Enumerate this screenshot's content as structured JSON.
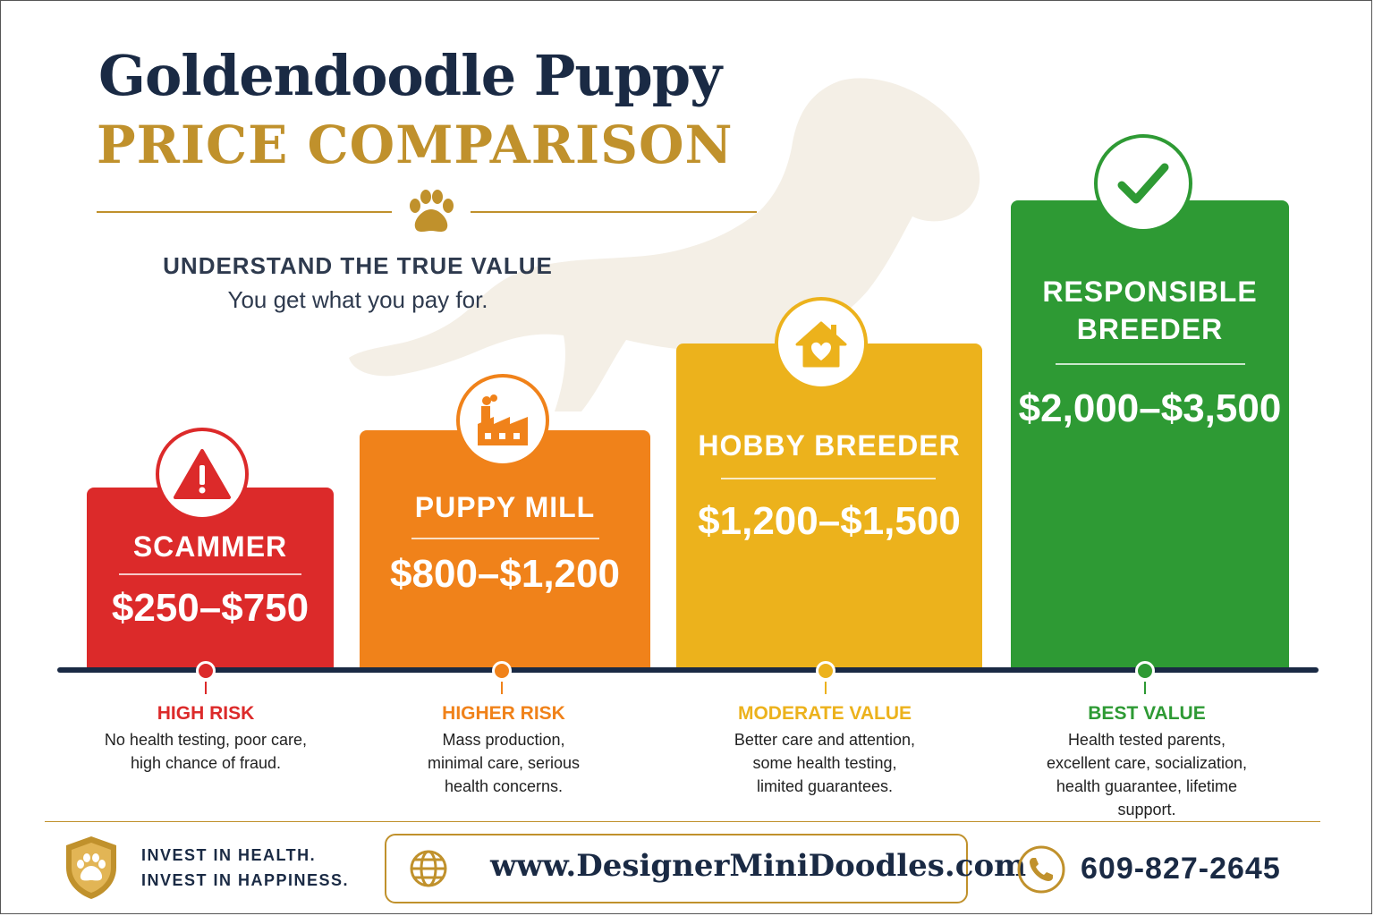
{
  "header": {
    "title_line1": "Goldendoodle Puppy",
    "title_line2": "PRICE COMPARISON",
    "tagline": "UNDERSTAND THE TRUE VALUE",
    "subtagline": "You get what you pay for."
  },
  "tiers": [
    {
      "label": "SCAMMER",
      "price": "$250–$750",
      "risk": "HIGH RISK",
      "desc": [
        "No health testing, poor care,",
        "high chance of fraud."
      ],
      "color": "#dc2a2a",
      "icon": "warning-icon"
    },
    {
      "label": "PUPPY MILL",
      "price": "$800–$1,200",
      "risk": "HIGHER RISK",
      "desc": [
        "Mass production,",
        "minimal care, serious",
        "health concerns."
      ],
      "color": "#f0821a",
      "icon": "factory-icon"
    },
    {
      "label": "HOBBY BREEDER",
      "price": "$1,200–$1,500",
      "risk": "MODERATE VALUE",
      "desc": [
        "Better care and attention,",
        "some health testing,",
        "limited guarantees."
      ],
      "color": "#ecb21c",
      "icon": "house-heart-icon"
    },
    {
      "label": "RESPONSIBLE",
      "label2": "BREEDER",
      "price": "$2,000–$3,500",
      "risk": "BEST VALUE",
      "desc": [
        "Health tested parents,",
        "excellent care, socialization,",
        "health guarantee, lifetime",
        "support."
      ],
      "color": "#2e9a34",
      "icon": "checkmark-icon"
    }
  ],
  "footer": {
    "invest_line1": "INVEST IN HEALTH.",
    "invest_line2": "INVEST IN HAPPINESS.",
    "website": "www.DesignerMiniDoodles.com",
    "phone": "609-827-2645"
  },
  "colors": {
    "navy": "#1a2a44",
    "gold": "#c0912c"
  }
}
